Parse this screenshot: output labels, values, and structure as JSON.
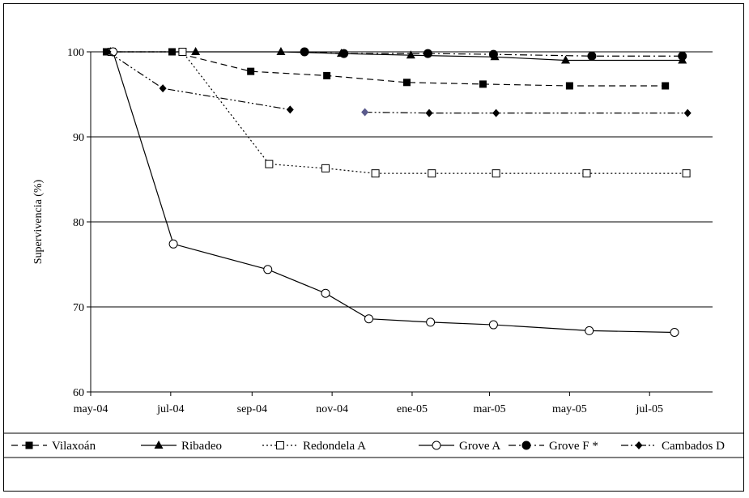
{
  "chart_data": {
    "type": "line",
    "title": "",
    "xlabel": "",
    "ylabel": "Supervivencia (%)",
    "ylim": [
      60,
      100
    ],
    "y_ticks": [
      60,
      70,
      80,
      90,
      100
    ],
    "x_ticks": [
      "may-04",
      "jul-04",
      "sep-04",
      "nov-04",
      "ene-05",
      "mar-05",
      "may-05",
      "jul-05"
    ],
    "x_tick_dates": [
      "2004-05-01",
      "2004-07-01",
      "2004-09-01",
      "2004-11-01",
      "2005-01-01",
      "2005-03-01",
      "2005-05-01",
      "2005-07-01"
    ],
    "xlim": [
      "2004-05-01",
      "2005-08-18"
    ],
    "grid": "horizontal",
    "legend_position": "bottom",
    "series": [
      {
        "name": "Vilaxoán",
        "color": "#000000",
        "marker": "square-filled",
        "dash": "dashed",
        "points": [
          [
            "2004-05-13",
            100
          ],
          [
            "2004-07-02",
            100
          ],
          [
            "2004-08-31",
            97.7
          ],
          [
            "2004-10-28",
            97.2
          ],
          [
            "2004-12-28",
            96.4
          ],
          [
            "2005-02-24",
            96.2
          ],
          [
            "2005-05-01",
            96.0
          ],
          [
            "2005-07-13",
            96.0
          ]
        ]
      },
      {
        "name": "Ribadeo",
        "color": "#000000",
        "marker": "triangle-filled",
        "dash": "solid",
        "points": [
          [
            "2004-05-16",
            100
          ],
          [
            "2004-07-20",
            100
          ],
          [
            "2004-09-23",
            100
          ],
          [
            "2004-11-08",
            99.8
          ],
          [
            "2004-12-31",
            99.6
          ],
          [
            "2005-03-05",
            99.4
          ],
          [
            "2005-04-28",
            99.0
          ],
          [
            "2005-07-26",
            99.0
          ]
        ]
      },
      {
        "name": "Redondela A",
        "color": "#000000",
        "marker": "square-open",
        "dash": "dotted",
        "points": [
          [
            "2004-05-17",
            100
          ],
          [
            "2004-07-10",
            100
          ],
          [
            "2004-09-14",
            86.8
          ],
          [
            "2004-10-27",
            86.3
          ],
          [
            "2004-12-04",
            85.7
          ],
          [
            "2005-01-16",
            85.7
          ],
          [
            "2005-03-06",
            85.7
          ],
          [
            "2005-05-14",
            85.7
          ],
          [
            "2005-07-29",
            85.7
          ]
        ]
      },
      {
        "name": "Grove A",
        "color": "#000000",
        "marker": "circle-open",
        "dash": "solid",
        "points": [
          [
            "2004-05-18",
            100
          ],
          [
            "2004-07-03",
            77.4
          ],
          [
            "2004-09-13",
            74.4
          ],
          [
            "2004-10-27",
            71.6
          ],
          [
            "2004-11-29",
            68.6
          ],
          [
            "2005-01-15",
            68.2
          ],
          [
            "2005-03-04",
            67.9
          ],
          [
            "2005-05-16",
            67.2
          ],
          [
            "2005-07-20",
            67.0
          ]
        ]
      },
      {
        "name": "Grove F *",
        "color": "#000000",
        "marker": "circle-filled",
        "dash": "dash-dot",
        "points": [
          [
            "2004-10-11",
            100
          ],
          [
            "2004-11-10",
            99.8
          ],
          [
            "2005-01-13",
            99.8
          ],
          [
            "2005-03-04",
            99.7
          ],
          [
            "2005-05-18",
            99.5
          ],
          [
            "2005-07-26",
            99.5
          ]
        ]
      },
      {
        "name": "Cambados D",
        "color": "#000000",
        "marker": "diamond-filled",
        "dash": "dash-dot-dot",
        "segments": [
          [
            [
              "2004-05-14",
              100
            ],
            [
              "2004-06-25",
              95.7
            ],
            [
              "2004-09-30",
              93.2
            ]
          ],
          [
            [
              "2004-11-26",
              92.9
            ],
            [
              "2005-01-14",
              92.8
            ],
            [
              "2005-03-06",
              92.8
            ],
            [
              "2005-07-30",
              92.8
            ]
          ]
        ],
        "highlight_point": {
          "date": "2004-11-26",
          "color": "#5a5a8c"
        }
      }
    ]
  }
}
